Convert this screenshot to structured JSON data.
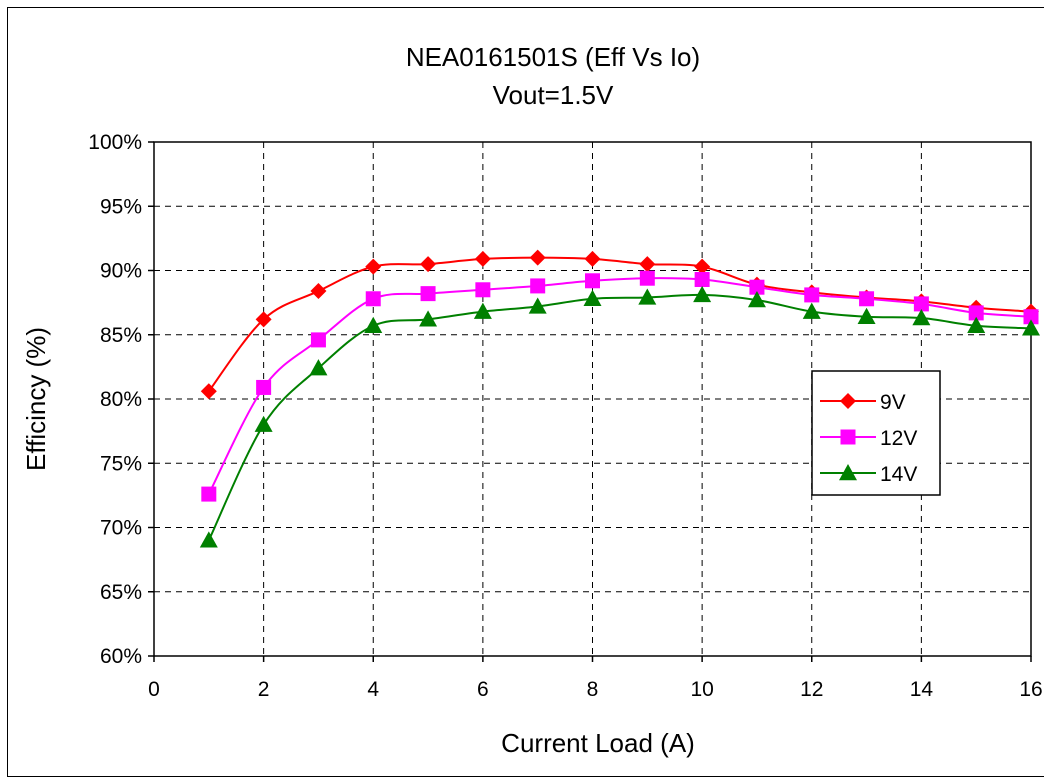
{
  "chart_data": {
    "type": "line",
    "title": "NEA0161501S (Eff Vs Io)",
    "subtitle": "Vout=1.5V",
    "xlabel": "Current Load (A)",
    "ylabel": "Efficincy (%)",
    "xlim": [
      0,
      16
    ],
    "ylim": [
      0.6,
      1.0
    ],
    "x_ticks": [
      "0",
      "2",
      "4",
      "6",
      "8",
      "10",
      "12",
      "14",
      "16"
    ],
    "y_ticks": [
      "60%",
      "65%",
      "70%",
      "75%",
      "80%",
      "85%",
      "90%",
      "95%",
      "100%"
    ],
    "grid": true,
    "legend_position": "right",
    "x": [
      1,
      2,
      3,
      4,
      5,
      6,
      7,
      8,
      9,
      10,
      11,
      12,
      13,
      14,
      15,
      16
    ],
    "series": [
      {
        "name": "9V",
        "color": "#ff0000",
        "marker": "diamond",
        "values": [
          0.806,
          0.862,
          0.884,
          0.903,
          0.905,
          0.909,
          0.91,
          0.909,
          0.905,
          0.903,
          0.889,
          0.883,
          0.879,
          0.876,
          0.871,
          0.868
        ]
      },
      {
        "name": "12V",
        "color": "#ff00ff",
        "marker": "square",
        "values": [
          0.726,
          0.809,
          0.846,
          0.878,
          0.882,
          0.885,
          0.888,
          0.892,
          0.894,
          0.893,
          0.887,
          0.881,
          0.878,
          0.874,
          0.867,
          0.864
        ]
      },
      {
        "name": "14V",
        "color": "#008000",
        "marker": "triangle",
        "values": [
          0.69,
          0.78,
          0.824,
          0.857,
          0.862,
          0.868,
          0.872,
          0.878,
          0.879,
          0.881,
          0.877,
          0.868,
          0.864,
          0.863,
          0.857,
          0.855
        ]
      }
    ]
  }
}
